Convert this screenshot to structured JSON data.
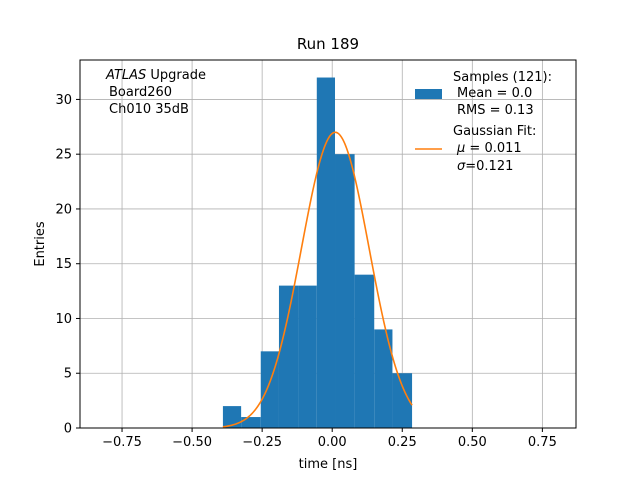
{
  "chart_data": {
    "type": "bar",
    "title": "Run 189",
    "xlabel": "time [ns]",
    "ylabel": "Entries",
    "xlim": [
      -0.9,
      0.87
    ],
    "ylim": [
      0,
      33.6
    ],
    "grid": true,
    "xticks": [
      -0.75,
      -0.5,
      -0.25,
      0.0,
      0.25,
      0.5,
      0.75
    ],
    "xtick_labels": [
      "−0.75",
      "−0.50",
      "−0.25",
      "0.00",
      "0.25",
      "0.50",
      "0.75"
    ],
    "yticks": [
      0,
      5,
      10,
      15,
      20,
      25,
      30
    ],
    "ytick_labels": [
      "0",
      "5",
      "10",
      "15",
      "20",
      "25",
      "30"
    ],
    "histogram": {
      "name": "Samples",
      "color": "#1f77b4",
      "bin_edges": [
        -0.39,
        -0.325,
        -0.255,
        -0.19,
        -0.12,
        -0.055,
        0.01,
        0.08,
        0.15,
        0.215,
        0.285
      ],
      "counts": [
        2,
        1,
        7,
        13,
        13,
        32,
        25,
        14,
        9,
        5
      ]
    },
    "fit": {
      "name": "Gaussian Fit",
      "color": "#ff7f0e",
      "amplitude": 27,
      "mu": 0.011,
      "sigma": 0.121,
      "x_range": [
        -0.39,
        0.285
      ]
    },
    "annotation": {
      "line1_italic": "ATLAS",
      "line1_rest": " Upgrade",
      "line2": "Board260",
      "line3": "Ch010 35dB"
    },
    "legend": {
      "placement": "top-right",
      "hist_lines": [
        "Samples (121):",
        "Mean = 0.0",
        "RMS = 0.13"
      ],
      "fit_title": "Gaussian Fit:",
      "fit_mu_symbol": "μ",
      "fit_mu_value": " = 0.011",
      "fit_sigma_symbol": "σ",
      "fit_sigma_value": "=0.121"
    }
  }
}
